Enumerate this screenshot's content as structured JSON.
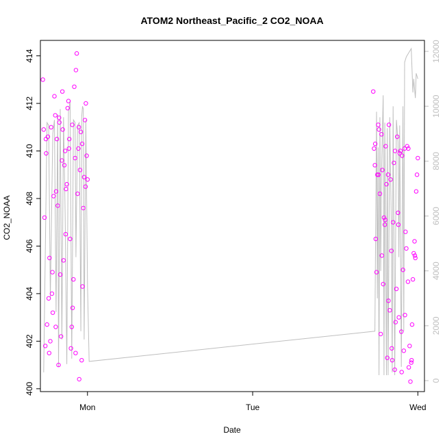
{
  "chart_data": {
    "type": "scatter",
    "title": "ATOM2 Northeast_Pacific_2 CO2_NOAA",
    "xlabel": "Date",
    "ylabel": "CO2_NOAA",
    "x_ticks": [
      "Mon",
      "Tue",
      "Wed"
    ],
    "y_ticks": [
      "400",
      "402",
      "404",
      "406",
      "408",
      "410",
      "412",
      "414"
    ],
    "y2_ticks": [
      "0",
      "2000",
      "4000",
      "6000",
      "8000",
      "10000",
      "12000"
    ],
    "xlim": [
      -0.285,
      2.04
    ],
    "ylim": [
      399.88,
      414.65
    ],
    "y2lim": [
      -400,
      12400
    ],
    "colors": {
      "points": "#ff00ff",
      "altitude_line": "#bebebe",
      "right_axis": "#bebebe"
    },
    "series": [
      {
        "kind": "points",
        "x": [
          -0.27,
          -0.265,
          -0.26,
          -0.255,
          -0.25,
          -0.245,
          -0.24,
          -0.235,
          -0.23,
          -0.225,
          -0.22,
          -0.215,
          -0.21,
          -0.205,
          -0.2,
          -0.195,
          -0.19,
          -0.185,
          -0.18,
          -0.175,
          -0.17,
          -0.165,
          -0.16,
          -0.155,
          -0.15,
          -0.145,
          -0.14,
          -0.135,
          -0.13,
          -0.125,
          -0.12,
          -0.115,
          -0.11,
          -0.105,
          -0.1,
          -0.095,
          -0.09,
          -0.085,
          -0.08,
          -0.075,
          -0.07,
          -0.065,
          -0.06,
          -0.055,
          -0.05,
          -0.045,
          -0.04,
          -0.035,
          -0.03,
          -0.025,
          -0.02,
          -0.015,
          -0.01,
          -0.005,
          0.0,
          -0.252,
          -0.232,
          -0.212,
          -0.192,
          -0.172,
          -0.152,
          -0.132,
          -0.112,
          -0.092,
          -0.072,
          -0.052,
          -0.032,
          -0.012,
          1.73,
          1.735,
          1.74,
          1.745,
          1.75,
          1.755,
          1.76,
          1.765,
          1.77,
          1.775,
          1.78,
          1.785,
          1.79,
          1.795,
          1.8,
          1.805,
          1.81,
          1.815,
          1.82,
          1.825,
          1.83,
          1.835,
          1.84,
          1.845,
          1.85,
          1.855,
          1.86,
          1.865,
          1.87,
          1.875,
          1.88,
          1.885,
          1.89,
          1.895,
          1.9,
          1.905,
          1.91,
          1.915,
          1.92,
          1.925,
          1.93,
          1.935,
          1.94,
          1.945,
          1.95,
          1.955,
          1.96,
          1.965,
          1.97,
          1.975,
          1.98,
          1.985,
          1.99,
          1.995,
          2.0,
          1.742,
          1.762,
          1.782,
          1.802,
          1.822,
          1.842,
          1.862,
          1.882,
          1.902,
          1.922,
          1.942,
          1.962,
          1.982
        ],
        "y": [
          413.0,
          410.9,
          407.2,
          401.8,
          409.9,
          402.7,
          410.6,
          403.8,
          405.5,
          402.0,
          411.0,
          404.0,
          403.2,
          408.1,
          412.3,
          411.5,
          408.3,
          410.5,
          407.7,
          401.0,
          411.2,
          404.8,
          402.2,
          409.6,
          410.9,
          405.4,
          409.4,
          410.0,
          408.4,
          408.6,
          411.8,
          412.1,
          410.5,
          406.3,
          401.7,
          402.6,
          403.4,
          404.6,
          412.7,
          409.7,
          413.4,
          414.1,
          408.2,
          410.1,
          400.4,
          409.2,
          410.8,
          401.2,
          404.3,
          407.6,
          408.9,
          411.3,
          412.0,
          409.8,
          408.8,
          410.5,
          401.5,
          404.9,
          402.6,
          411.4,
          412.5,
          406.5,
          410.1,
          411.1,
          401.5,
          411.0,
          410.3,
          408.5,
          412.5,
          410.1,
          409.4,
          406.3,
          404.9,
          409.0,
          411.1,
          410.9,
          408.2,
          402.3,
          410.7,
          409.2,
          404.4,
          407.2,
          406.9,
          410.2,
          408.6,
          401.3,
          409.0,
          411.1,
          403.3,
          408.8,
          405.8,
          401.2,
          407.0,
          409.5,
          400.8,
          402.8,
          404.2,
          410.6,
          407.4,
          403.0,
          409.9,
          410.0,
          402.4,
          409.8,
          405.0,
          401.6,
          410.1,
          406.6,
          405.9,
          410.2,
          404.5,
          400.9,
          401.8,
          400.3,
          401.1,
          402.7,
          404.6,
          405.7,
          406.2,
          405.5,
          408.3,
          409.0,
          409.7,
          410.3,
          409.0,
          405.6,
          407.1,
          403.7,
          401.7,
          410.0,
          406.9,
          400.7,
          403.1,
          410.1,
          401.2,
          405.6
        ]
      },
      {
        "kind": "line",
        "axis": "right",
        "x": [
          -0.265,
          -0.245,
          -0.235,
          -0.225,
          -0.21,
          -0.2,
          -0.19,
          -0.18,
          -0.175,
          -0.165,
          -0.155,
          -0.145,
          -0.135,
          -0.125,
          -0.115,
          -0.105,
          -0.095,
          -0.085,
          -0.075,
          -0.07,
          -0.06,
          -0.05,
          -0.04,
          -0.035,
          -0.03,
          -0.025,
          -0.02,
          -0.01,
          0.0,
          0.01,
          1.74,
          1.75,
          1.755,
          1.76,
          1.765,
          1.77,
          1.775,
          1.78,
          1.79,
          1.795,
          1.8,
          1.81,
          1.815,
          1.82,
          1.83,
          1.84,
          1.845,
          1.85,
          1.86,
          1.87,
          1.88,
          1.885,
          1.89,
          1.9,
          1.91,
          1.915,
          1.92,
          1.93,
          1.94,
          1.95,
          1.96,
          1.97,
          1.975,
          1.985,
          1.99,
          2.0
        ],
        "y": [
          300,
          9400,
          9300,
          3000,
          9000,
          9500,
          2500,
          9700,
          500,
          9900,
          1500,
          9600,
          6000,
          600,
          9800,
          10200,
          800,
          9500,
          9400,
          4500,
          9300,
          9400,
          1800,
          9600,
          10000,
          9900,
          1500,
          9500,
          3500,
          700,
          1800,
          9800,
          3000,
          8500,
          200,
          9600,
          4000,
          7600,
          10400,
          200,
          9400,
          200,
          9200,
          200,
          9600,
          5500,
          300,
          10000,
          200,
          9500,
          8700,
          4500,
          9300,
          500,
          10000,
          1800,
          11600,
          11800,
          11900,
          12000,
          12100,
          10500,
          11000,
          10300,
          11200,
          11000
        ]
      }
    ]
  }
}
